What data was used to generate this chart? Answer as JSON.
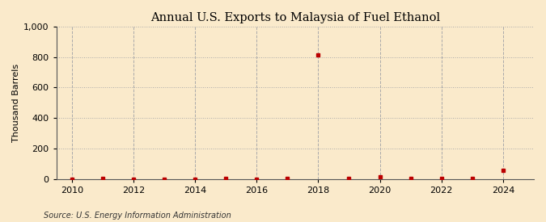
{
  "title": "Annual U.S. Exports to Malaysia of Fuel Ethanol",
  "ylabel": "Thousand Barrels",
  "source": "Source: U.S. Energy Information Administration",
  "background_color": "#faeacb",
  "years": [
    2010,
    2011,
    2012,
    2013,
    2014,
    2015,
    2016,
    2017,
    2018,
    2019,
    2020,
    2021,
    2022,
    2023,
    2024
  ],
  "values": [
    0,
    2,
    0,
    0,
    0,
    2,
    0,
    2,
    814,
    2,
    14,
    2,
    5,
    2,
    55
  ],
  "point_color": "#bb0000",
  "ylim": [
    0,
    1000
  ],
  "yticks": [
    0,
    200,
    400,
    600,
    800,
    1000
  ],
  "xlim": [
    2009.5,
    2025.0
  ],
  "xticks": [
    2010,
    2012,
    2014,
    2016,
    2018,
    2020,
    2022,
    2024
  ],
  "grid_color": "#aaaaaa",
  "title_fontsize": 10.5,
  "label_fontsize": 8,
  "tick_fontsize": 8,
  "source_fontsize": 7
}
